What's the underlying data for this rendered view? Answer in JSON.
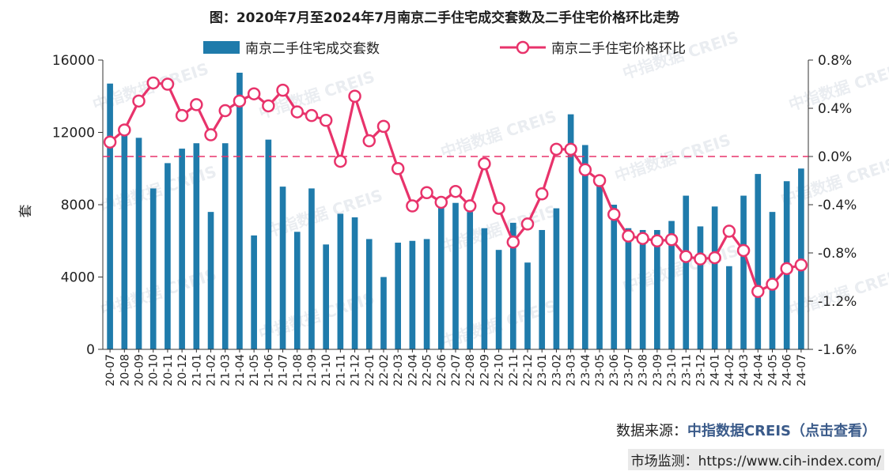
{
  "chart_data": {
    "type": "bar+line",
    "title": "图：2020年7月至2024年7月南京二手住宅成交套数及二手住宅价格环比走势",
    "ylabel": "套",
    "ylim": [
      0,
      16000
    ],
    "y_ticks": [
      "0",
      "4000",
      "8000",
      "12000",
      "16000"
    ],
    "y2lim": [
      -1.6,
      0.8
    ],
    "y2_ticks": [
      "-1.6%",
      "-1.2%",
      "-0.8%",
      "-0.4%",
      "0.0%",
      "0.4%",
      "0.8%"
    ],
    "categories": [
      "20-07",
      "20-08",
      "20-09",
      "20-10",
      "20-11",
      "20-12",
      "21-01",
      "21-02",
      "21-03",
      "21-04",
      "21-05",
      "21-06",
      "21-07",
      "21-08",
      "21-09",
      "21-10",
      "21-11",
      "21-12",
      "22-01",
      "22-02",
      "22-03",
      "22-04",
      "22-05",
      "22-06",
      "22-07",
      "22-08",
      "22-09",
      "22-10",
      "22-11",
      "22-12",
      "23-01",
      "23-02",
      "23-03",
      "23-04",
      "23-05",
      "23-06",
      "23-07",
      "23-08",
      "23-09",
      "23-10",
      "23-11",
      "23-12",
      "24-01",
      "24-02",
      "24-03",
      "24-04",
      "24-05",
      "24-06",
      "24-07"
    ],
    "series": [
      {
        "name": "南京二手住宅成交套数",
        "type": "bar",
        "axis": "left",
        "color": "#1f7bab",
        "values": [
          14700,
          12100,
          11700,
          8900,
          10300,
          11100,
          11400,
          7600,
          11400,
          15300,
          6300,
          11600,
          9000,
          6500,
          8900,
          5800,
          7500,
          7300,
          6100,
          4000,
          5900,
          6000,
          6100,
          8000,
          8100,
          7600,
          6700,
          5500,
          7000,
          4800,
          6600,
          7800,
          13000,
          11300,
          9200,
          8000,
          6700,
          6600,
          6600,
          7100,
          8500,
          6800,
          7900,
          4600,
          8500,
          9700,
          7600,
          9300,
          10000
        ]
      },
      {
        "name": "南京二手住宅价格环比",
        "type": "line",
        "axis": "right",
        "color": "#e8336b",
        "values": [
          0.12,
          0.22,
          0.46,
          0.61,
          0.6,
          0.34,
          0.43,
          0.18,
          0.38,
          0.46,
          0.52,
          0.42,
          0.55,
          0.37,
          0.34,
          0.3,
          -0.04,
          0.5,
          0.13,
          0.25,
          -0.1,
          -0.41,
          -0.3,
          -0.38,
          -0.29,
          -0.41,
          -0.06,
          -0.43,
          -0.71,
          -0.56,
          -0.31,
          0.06,
          0.06,
          -0.11,
          -0.2,
          -0.48,
          -0.66,
          -0.68,
          -0.7,
          -0.69,
          -0.83,
          -0.85,
          -0.84,
          -0.62,
          -0.78,
          -1.12,
          -1.06,
          -0.93,
          -0.9
        ]
      }
    ],
    "reference_line": 0.0
  },
  "watermark": "中指数据 CREIS",
  "source": {
    "label": "数据来源：",
    "link": "中指数据CREIS（点击查看）"
  },
  "monitor": {
    "label": "市场监测：",
    "url": "https://www.cih-index.com/"
  }
}
